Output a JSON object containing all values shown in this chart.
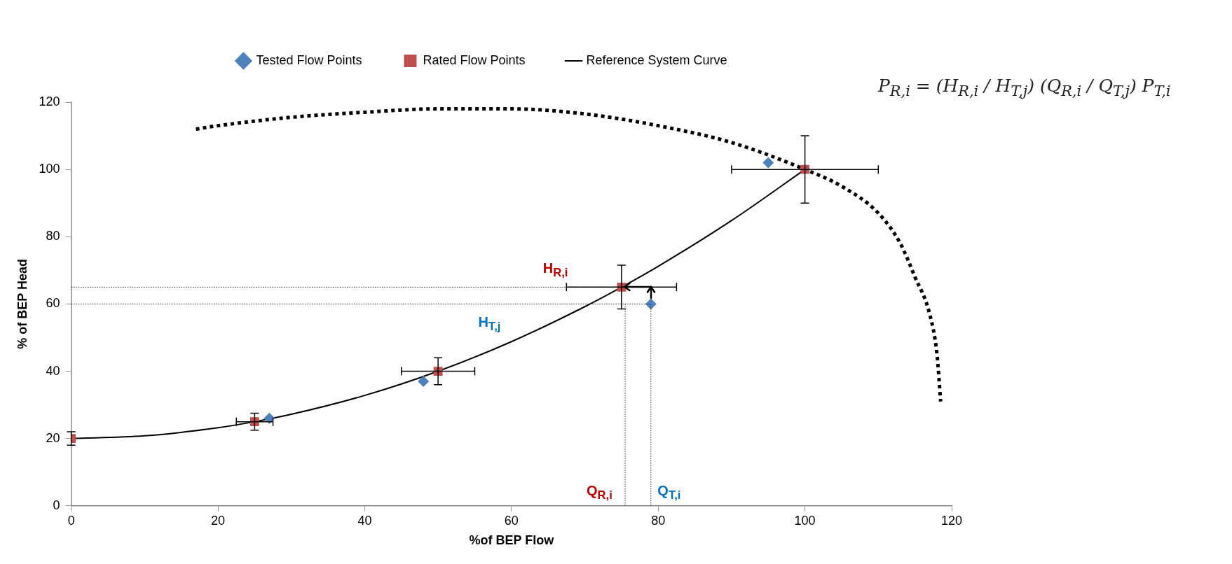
{
  "chart_data": {
    "type": "scatter",
    "xlabel": "%of BEP Flow",
    "ylabel": "% of BEP Head",
    "xlim": [
      0,
      120
    ],
    "xticks": [
      0,
      20,
      40,
      60,
      80,
      100,
      120
    ],
    "ylim": [
      0,
      120
    ],
    "yticks": [
      0,
      20,
      40,
      60,
      80,
      100,
      120
    ],
    "grid": false,
    "legend": "top",
    "series": [
      {
        "name": "Tested Flow Points",
        "marker": "diamond",
        "color": "#4f81bd",
        "x": [
          27,
          48,
          79,
          95
        ],
        "values": [
          26,
          37,
          60,
          102
        ]
      },
      {
        "name": "Rated Flow Points",
        "marker": "square",
        "color": "#c0504d",
        "x": [
          0,
          25,
          50,
          75,
          100
        ],
        "values": [
          20,
          25,
          40,
          65,
          100
        ],
        "errors": [
          2,
          2.5,
          4,
          6.5,
          10
        ],
        "xerrors": [
          null,
          2.5,
          5,
          7.5,
          10
        ]
      },
      {
        "name": "Reference System Curve",
        "type": "line",
        "marker": "none",
        "line_style": "solid",
        "color": "#000000",
        "x": [
          0,
          10,
          20,
          25,
          30,
          40,
          50,
          60,
          70,
          75,
          80,
          90,
          100
        ],
        "values": [
          20,
          20.8,
          23.2,
          25,
          27.2,
          32.8,
          40,
          48.8,
          59.2,
          65,
          71.2,
          84.8,
          100
        ]
      },
      {
        "type": "line",
        "marker": "none",
        "line_style": "dotted",
        "color": "#000000",
        "x": [
          17,
          20,
          30,
          40,
          50,
          60,
          70,
          80,
          90,
          100,
          105,
          110,
          113,
          115,
          117,
          118,
          118.5
        ],
        "values": [
          112,
          113,
          115.5,
          117,
          118,
          118,
          116.5,
          113,
          108,
          100,
          95,
          87,
          78,
          68,
          57,
          45,
          31
        ]
      }
    ],
    "ref_lines": [
      {
        "axis": "y",
        "value": 65,
        "color": "#404040",
        "line_style": "dotted"
      },
      {
        "axis": "y",
        "value": 60,
        "color": "#404040",
        "line_style": "dotted"
      },
      {
        "axis": "x",
        "value": 75.5,
        "color": "#404040",
        "line_style": "dotted"
      },
      {
        "axis": "x",
        "value": 79,
        "color": "#404040",
        "line_style": "dotted"
      }
    ],
    "annotations": [
      "H$_{R,i}$",
      "H$_{T,j}$",
      "Q$_{R,i}$",
      "Q$_{T,i}$",
      "P$_{R,i}$ = (H$_{R,i}$ / H$_{T,j}$) (Q$_{R,i}$ / Q$_{T,j}$) P$_{T,i}$"
    ]
  }
}
